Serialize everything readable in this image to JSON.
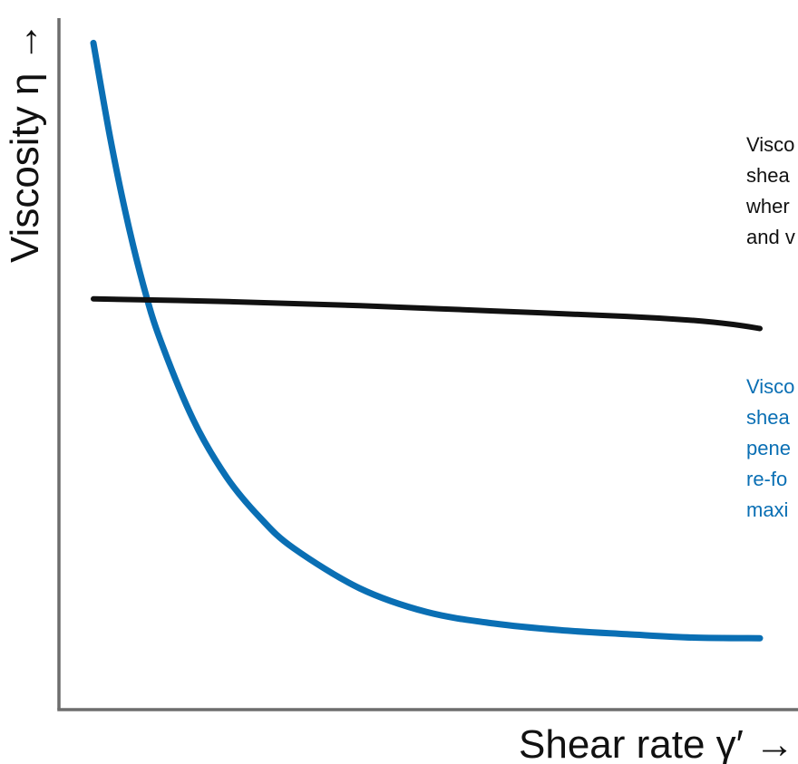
{
  "chart_data": {
    "type": "line",
    "xlabel": "Shear rate γ′ →",
    "ylabel": "Viscosity η →",
    "xlim": [
      0,
      10
    ],
    "ylim": [
      0,
      10
    ],
    "grid": false,
    "axis_color": "#6d6d6d",
    "series": [
      {
        "color": "#0a6fb4",
        "x": [
          0.0,
          0.25,
          0.5,
          0.75,
          1.0,
          1.5,
          2.0,
          2.5,
          3.0,
          4.0,
          5.0,
          6.0,
          7.0,
          8.0,
          9.0,
          10.0
        ],
        "y": [
          9.9,
          8.5,
          7.3,
          6.3,
          5.5,
          4.3,
          3.45,
          2.85,
          2.4,
          1.8,
          1.45,
          1.28,
          1.18,
          1.12,
          1.07,
          1.06
        ]
      },
      {
        "color": "#111111",
        "x": [
          0.0,
          2.0,
          4.0,
          6.0,
          8.0,
          9.0,
          9.6,
          10.0
        ],
        "y": [
          6.1,
          6.06,
          6.0,
          5.92,
          5.84,
          5.78,
          5.72,
          5.66
        ]
      }
    ],
    "annotations": [
      {
        "color": "#111111",
        "lines": [
          "Visco",
          "shea",
          "wher",
          "and v"
        ]
      },
      {
        "color": "#0a6fb4",
        "lines": [
          "Visco",
          "shea",
          "pene",
          "re-fo",
          "maxi"
        ]
      }
    ]
  }
}
